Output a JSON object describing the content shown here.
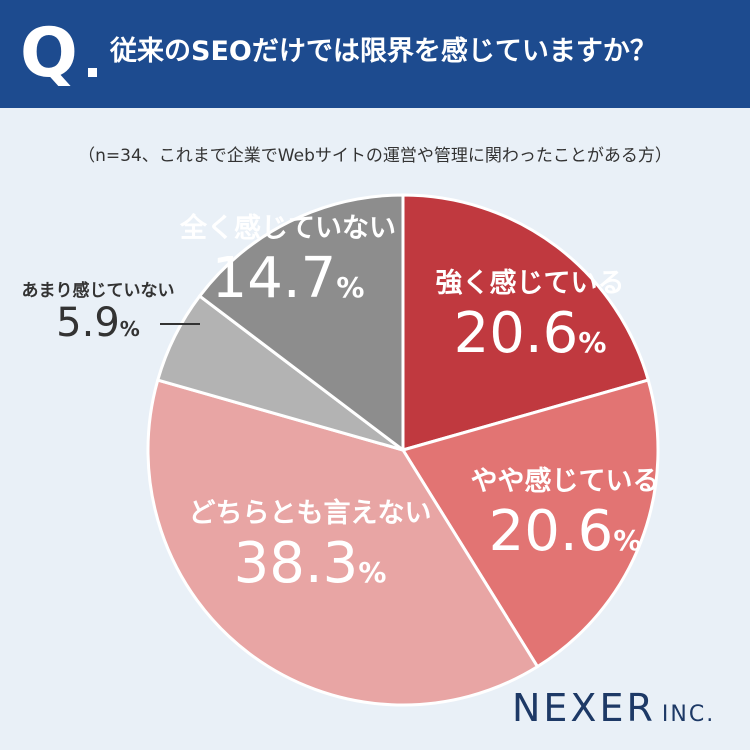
{
  "header": {
    "q_mark": "Q",
    "question": "従来のSEOだけでは限界を感じていますか？"
  },
  "note": "（n=34、これまで企業でWebサイトの運営や管理に関わったことがある方）",
  "brand": {
    "name": "NEXER",
    "suffix": "INC."
  },
  "chart_data": {
    "type": "pie",
    "unit": "%",
    "start": "12 o'clock",
    "direction": "clockwise",
    "slices": [
      {
        "label": "強く感じている",
        "value": 20.6,
        "color": "#c0393f",
        "text_color": "#ffffff"
      },
      {
        "label": "やや感じている",
        "value": 20.6,
        "color": "#e27473",
        "text_color": "#ffffff"
      },
      {
        "label": "どちらとも言えない",
        "value": 38.3,
        "color": "#e8a5a4",
        "text_color": "#ffffff"
      },
      {
        "label": "あまり感じていない",
        "value": 5.9,
        "color": "#b3b3b3",
        "text_color": "#333333"
      },
      {
        "label": "全く感じていない",
        "value": 14.7,
        "color": "#8d8d8d",
        "text_color": "#ffffff"
      }
    ]
  }
}
